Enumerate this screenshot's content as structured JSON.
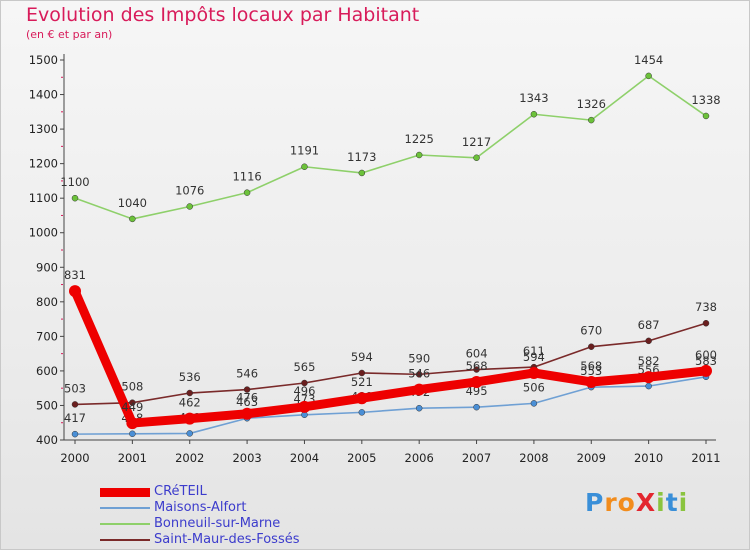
{
  "title": "Evolution des Impôts locaux par Habitant",
  "subtitle": "(en € et par an)",
  "brand": {
    "text": "ProXiti",
    "letters": [
      {
        "ch": "P",
        "color": "#3a8fd8"
      },
      {
        "ch": "r",
        "color": "#f28c1c"
      },
      {
        "ch": "o",
        "color": "#f28c1c"
      },
      {
        "ch": "X",
        "color": "#e3262f"
      },
      {
        "ch": "i",
        "color": "#8ac43f"
      },
      {
        "ch": "t",
        "color": "#3a8fd8"
      },
      {
        "ch": "i",
        "color": "#8ac43f"
      }
    ]
  },
  "chart_data": {
    "type": "line",
    "title": "Evolution des Impôts locaux par Habitant",
    "subtitle": "(en € et par an)",
    "xlabel": "",
    "ylabel": "",
    "ylim": [
      400,
      1500
    ],
    "yticks": [
      400,
      500,
      600,
      700,
      800,
      900,
      1000,
      1100,
      1200,
      1300,
      1400,
      1500
    ],
    "grid": false,
    "legend": "bottom-left",
    "x": [
      2000,
      2001,
      2002,
      2003,
      2004,
      2005,
      2006,
      2007,
      2008,
      2009,
      2010,
      2011
    ],
    "series": [
      {
        "name": "Saint-Maur-des-Fossés",
        "color": "#7a2a2a",
        "marker": "#6b1f1f",
        "values": [
          503,
          508,
          536,
          546,
          565,
          594,
          590,
          604,
          611,
          670,
          687,
          738
        ]
      },
      {
        "name": "Bonneuil-sur-Marne",
        "color": "#8ed06a",
        "marker": "#6cc23a",
        "values": [
          1100,
          1040,
          1076,
          1116,
          1191,
          1173,
          1225,
          1217,
          1343,
          1326,
          1454,
          1338
        ]
      },
      {
        "name": "Maisons-Alfort",
        "color": "#6fa0d4",
        "marker": "#4a8fd6",
        "values": [
          417,
          418,
          419,
          463,
          473,
          480,
          492,
          495,
          506,
          553,
          556,
          583
        ]
      },
      {
        "name": "CRéTEIL",
        "color": "#ee0000",
        "marker": "#ee0000",
        "values": [
          831,
          449,
          462,
          476,
          496,
          521,
          546,
          568,
          594,
          568,
          582,
          600
        ]
      }
    ]
  }
}
